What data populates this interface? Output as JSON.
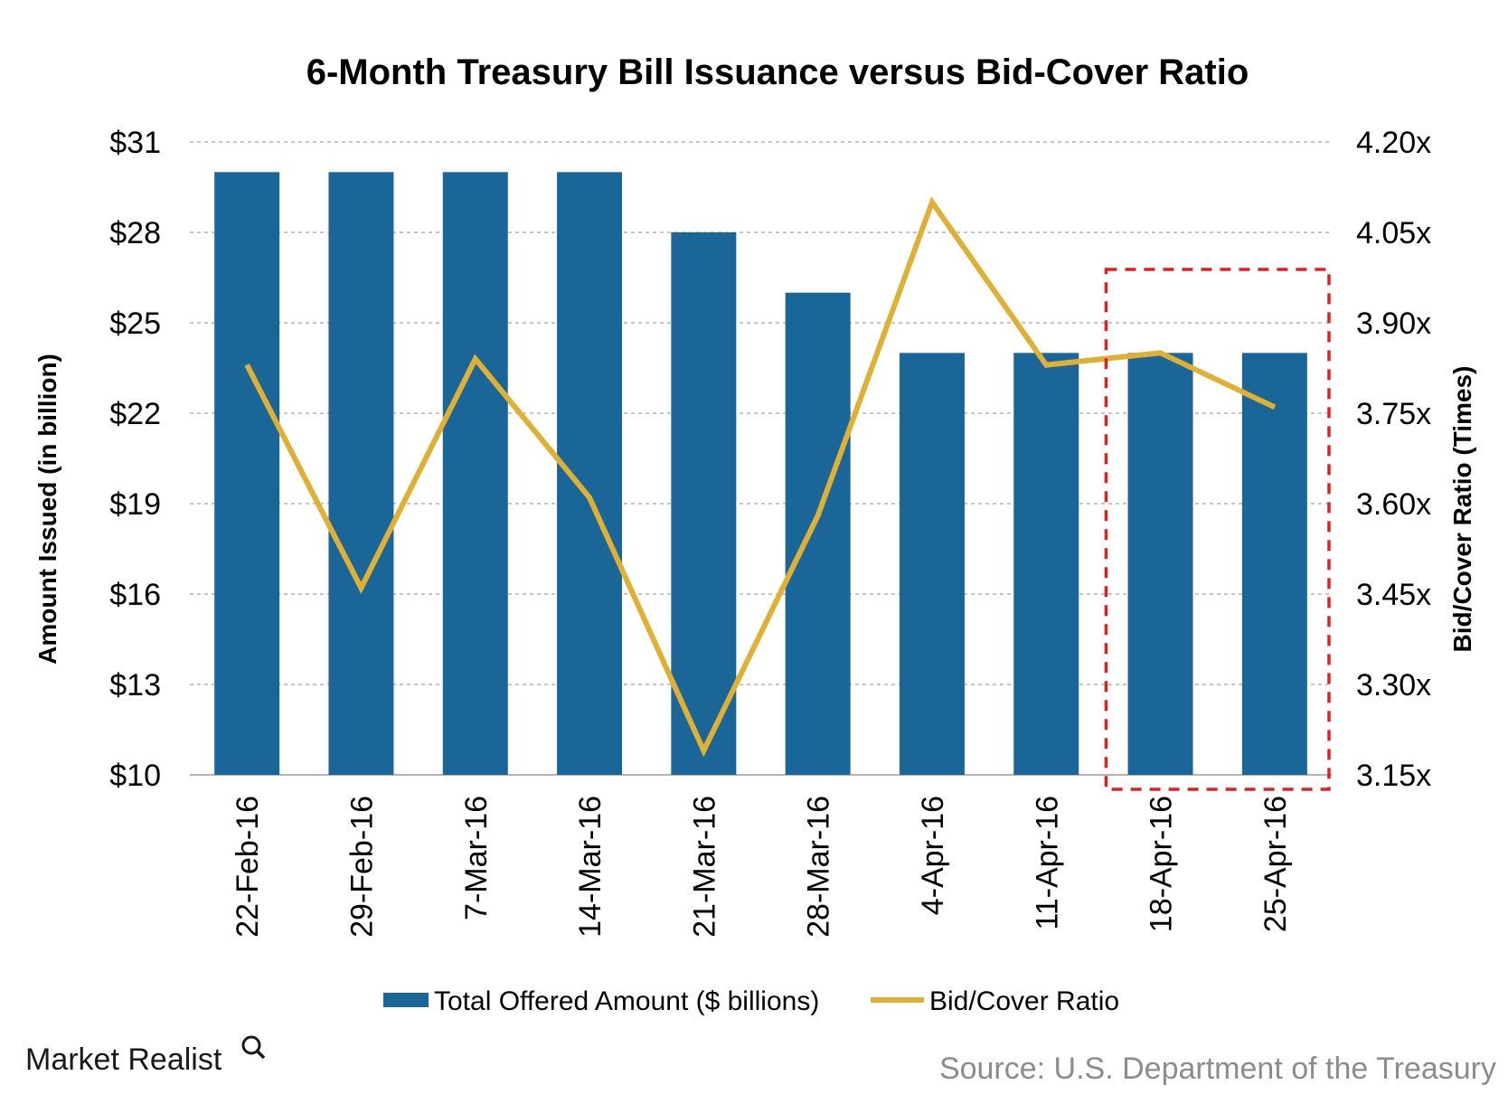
{
  "chart_data": {
    "type": "bar+line",
    "title": "6-Month Treasury Bill Issuance versus Bid-Cover Ratio",
    "categories": [
      "22-Feb-16",
      "29-Feb-16",
      "7-Mar-16",
      "14-Mar-16",
      "21-Mar-16",
      "28-Mar-16",
      "4-Apr-16",
      "11-Apr-16",
      "18-Apr-16",
      "25-Apr-16"
    ],
    "series": [
      {
        "name": "Total Offered Amount ($ billions)",
        "type": "bar",
        "axis": "left",
        "color": "#1a6699",
        "values": [
          30,
          30,
          30,
          30,
          28,
          26,
          24,
          24,
          24,
          24
        ]
      },
      {
        "name": "Bid/Cover Ratio",
        "type": "line",
        "axis": "right",
        "color": "#e0b034",
        "values": [
          3.83,
          3.46,
          3.84,
          3.61,
          3.19,
          3.58,
          4.1,
          3.83,
          3.85,
          3.76
        ]
      }
    ],
    "ylabel": "Amount Issued (in billion)",
    "ylim": [
      10,
      31
    ],
    "yticks": [
      "$31",
      "$28",
      "$25",
      "$22",
      "$19",
      "$16",
      "$13",
      "$10"
    ],
    "ytick_values": [
      31,
      28,
      25,
      22,
      19,
      16,
      13,
      10
    ],
    "y2label": "Bid/Cover Ratio (Times)",
    "y2lim": [
      3.15,
      4.2
    ],
    "y2ticks": [
      "4.20x",
      "4.05x",
      "3.90x",
      "3.75x",
      "3.60x",
      "3.45x",
      "3.30x",
      "3.15x"
    ],
    "y2tick_values": [
      4.2,
      4.05,
      3.9,
      3.75,
      3.6,
      3.45,
      3.3,
      3.15
    ],
    "grid": true,
    "legend_position": "bottom",
    "highlight": {
      "categories": [
        "18-Apr-16",
        "25-Apr-16"
      ],
      "color": "#e02020",
      "style": "dashed"
    }
  },
  "brand": "Market Realist",
  "source": "Source: U.S. Department of the Treasury"
}
